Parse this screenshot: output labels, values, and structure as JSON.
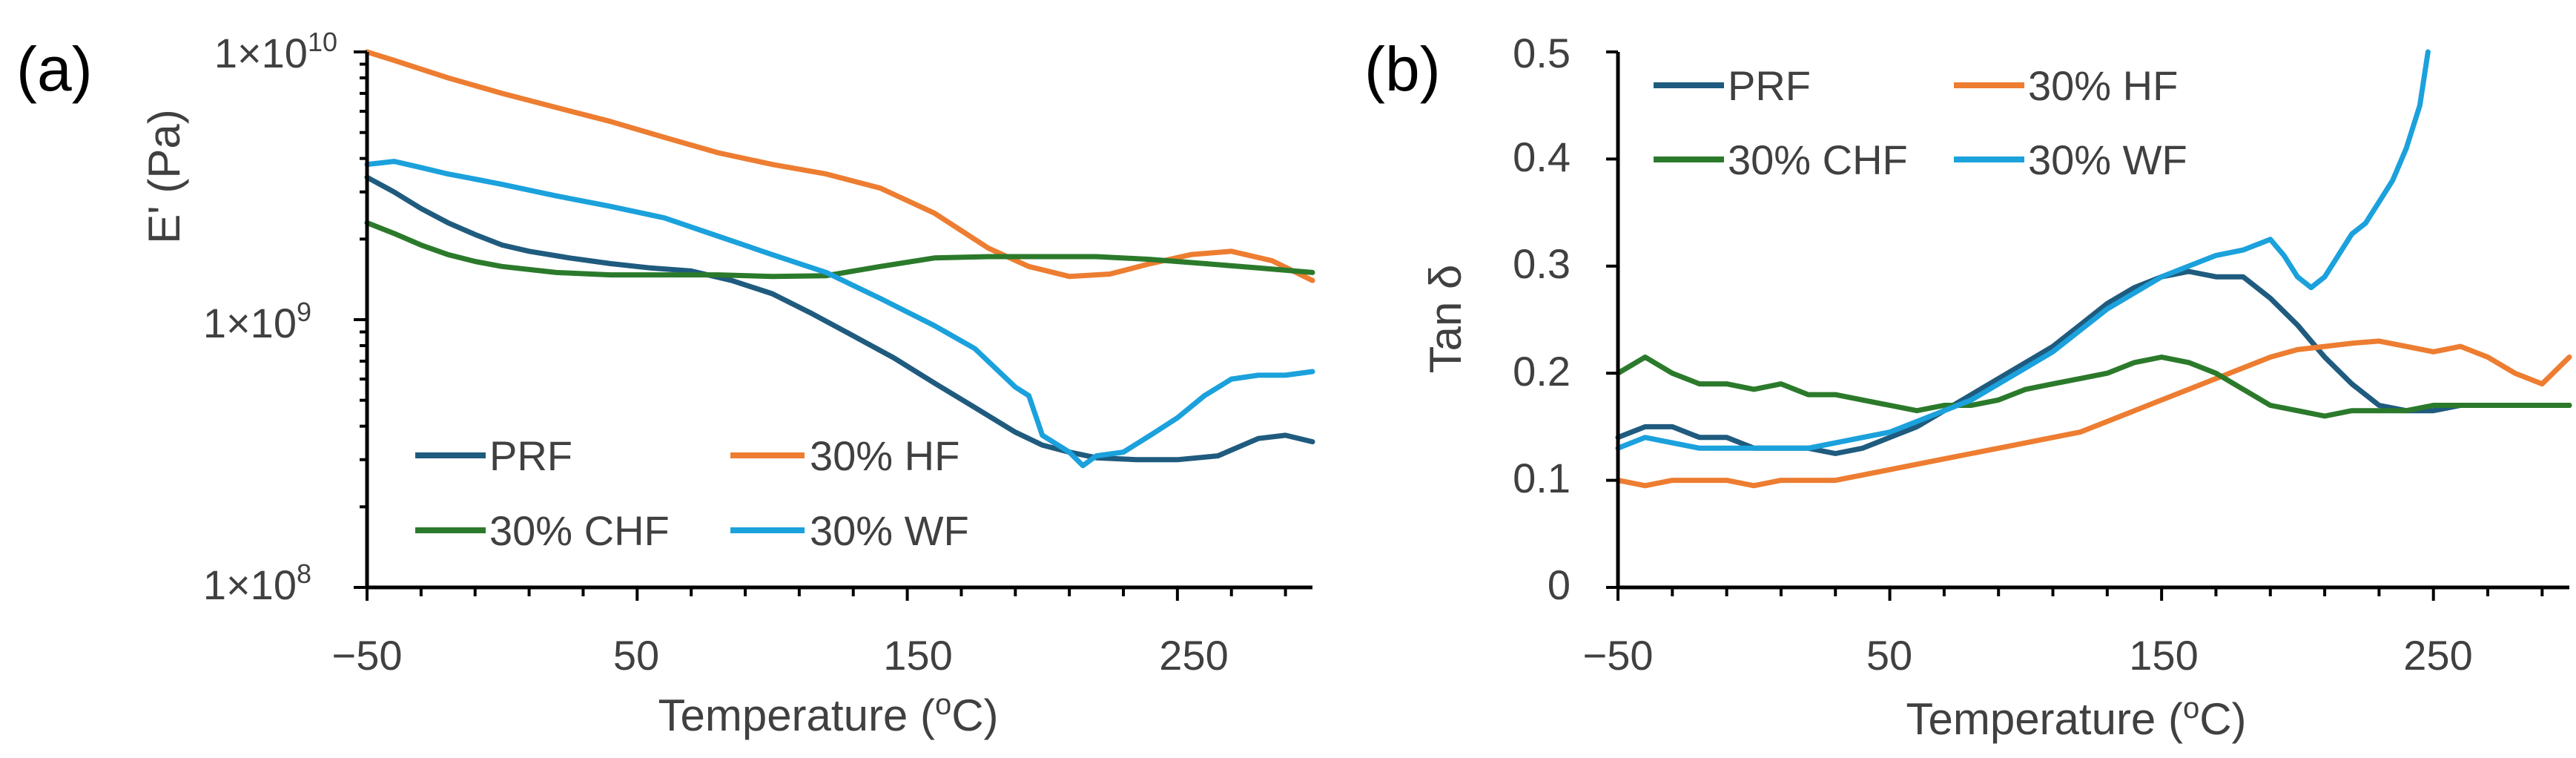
{
  "chart_data": [
    {
      "panel": "(a)",
      "type": "line",
      "xlabel": "Temperature (oC)",
      "xlabel_main": "Temperature (",
      "xlabel_sup": "o",
      "xlabel_end": "C)",
      "ylabel": "E' (Pa)",
      "yscale": "log",
      "xlim": [
        -50,
        300
      ],
      "ylim": [
        100000000,
        10000000000
      ],
      "x_ticks": [
        -50,
        50,
        150,
        250
      ],
      "x_tick_labels": [
        "−50",
        "50",
        "150",
        "250"
      ],
      "y_ticks": [
        100000000,
        1000000000,
        10000000000
      ],
      "y_tick_labels": [
        {
          "base": "1×10",
          "exp": "8"
        },
        {
          "base": "1×10",
          "exp": "9"
        },
        {
          "base": "1×10",
          "exp": "10"
        }
      ],
      "legend": "bottom-left, 2 columns",
      "series": [
        {
          "name": "PRF",
          "color": "#1f5b7e",
          "x": [
            -50,
            -40,
            -30,
            -20,
            -10,
            0,
            10,
            25,
            40,
            55,
            70,
            85,
            100,
            115,
            130,
            145,
            160,
            175,
            190,
            200,
            210,
            220,
            235,
            250,
            265,
            280,
            290,
            300
          ],
          "y": [
            3400000000,
            3000000000,
            2600000000,
            2300000000,
            2080000000,
            1900000000,
            1800000000,
            1700000000,
            1620000000,
            1560000000,
            1520000000,
            1400000000,
            1250000000,
            1050000000,
            870000000,
            720000000,
            580000000,
            470000000,
            380000000,
            340000000,
            320000000,
            305000000,
            300000000,
            300000000,
            310000000,
            360000000,
            370000000,
            350000000
          ]
        },
        {
          "name": "30% HF",
          "color": "#ed7d31",
          "x": [
            -50,
            -40,
            -20,
            0,
            20,
            40,
            60,
            80,
            100,
            120,
            140,
            160,
            180,
            195,
            210,
            225,
            240,
            255,
            270,
            285,
            300
          ],
          "y": [
            10000000000,
            9300000000,
            8000000000,
            7000000000,
            6200000000,
            5500000000,
            4800000000,
            4200000000,
            3800000000,
            3500000000,
            3100000000,
            2500000000,
            1850000000,
            1580000000,
            1450000000,
            1480000000,
            1620000000,
            1750000000,
            1800000000,
            1660000000,
            1400000000
          ]
        },
        {
          "name": "30% CHF",
          "color": "#2b7a2b",
          "x": [
            -50,
            -40,
            -30,
            -20,
            -10,
            0,
            20,
            40,
            60,
            80,
            100,
            120,
            140,
            160,
            180,
            200,
            220,
            240,
            260,
            280,
            300
          ],
          "y": [
            2300000000,
            2100000000,
            1900000000,
            1750000000,
            1650000000,
            1580000000,
            1500000000,
            1470000000,
            1470000000,
            1470000000,
            1450000000,
            1460000000,
            1580000000,
            1700000000,
            1720000000,
            1720000000,
            1720000000,
            1680000000,
            1620000000,
            1560000000,
            1500000000
          ]
        },
        {
          "name": "30% WF",
          "color": "#1ba1dc",
          "x": [
            -50,
            -40,
            -30,
            -20,
            -10,
            0,
            20,
            40,
            60,
            80,
            100,
            120,
            140,
            160,
            175,
            190,
            195,
            200,
            210,
            215,
            220,
            230,
            240,
            250,
            260,
            270,
            280,
            290,
            300
          ],
          "y": [
            3800000000,
            3900000000,
            3700000000,
            3500000000,
            3350000000,
            3200000000,
            2900000000,
            2650000000,
            2400000000,
            2050000000,
            1750000000,
            1500000000,
            1200000000,
            950000000,
            780000000,
            560000000,
            520000000,
            370000000,
            320000000,
            285000000,
            310000000,
            320000000,
            370000000,
            430000000,
            520000000,
            600000000,
            620000000,
            620000000,
            640000000
          ]
        }
      ]
    },
    {
      "panel": "(b)",
      "type": "line",
      "xlabel": "Temperature (oC)",
      "xlabel_main": "Temperature (",
      "xlabel_sup": "o",
      "xlabel_end": "C)",
      "ylabel": "Tan δ",
      "xlim": [
        -50,
        300
      ],
      "ylim": [
        0,
        0.5
      ],
      "x_ticks": [
        -50,
        50,
        150,
        250
      ],
      "x_tick_labels": [
        "−50",
        "50",
        "150",
        "250"
      ],
      "y_ticks": [
        0,
        0.1,
        0.2,
        0.3,
        0.4,
        0.5
      ],
      "y_tick_labels": [
        "0",
        "0.1",
        "0.2",
        "0.3",
        "0.4",
        "0.5"
      ],
      "legend": "top-left, 2 columns",
      "series": [
        {
          "name": "PRF",
          "color": "#1f5b7e",
          "x": [
            -50,
            -40,
            -30,
            -20,
            -10,
            0,
            10,
            20,
            30,
            40,
            50,
            60,
            70,
            80,
            90,
            100,
            110,
            120,
            130,
            140,
            150,
            160,
            170,
            180,
            190,
            200,
            210,
            220,
            230,
            240,
            250,
            260,
            270,
            280,
            290,
            300
          ],
          "y": [
            0.14,
            0.15,
            0.15,
            0.14,
            0.14,
            0.13,
            0.13,
            0.13,
            0.125,
            0.13,
            0.14,
            0.15,
            0.165,
            0.18,
            0.195,
            0.21,
            0.225,
            0.245,
            0.265,
            0.28,
            0.29,
            0.295,
            0.29,
            0.29,
            0.27,
            0.245,
            0.215,
            0.19,
            0.17,
            0.165,
            0.165,
            0.17,
            0.17,
            0.17,
            0.17,
            0.17
          ]
        },
        {
          "name": "30% HF",
          "color": "#ed7d31",
          "x": [
            -50,
            -40,
            -30,
            -20,
            -10,
            0,
            10,
            20,
            30,
            40,
            50,
            60,
            70,
            80,
            90,
            100,
            110,
            120,
            130,
            140,
            150,
            160,
            170,
            180,
            190,
            200,
            210,
            220,
            230,
            240,
            250,
            260,
            270,
            280,
            290,
            300
          ],
          "y": [
            0.1,
            0.095,
            0.1,
            0.1,
            0.1,
            0.095,
            0.1,
            0.1,
            0.1,
            0.105,
            0.11,
            0.115,
            0.12,
            0.125,
            0.13,
            0.135,
            0.14,
            0.145,
            0.155,
            0.165,
            0.175,
            0.185,
            0.195,
            0.205,
            0.215,
            0.222,
            0.225,
            0.228,
            0.23,
            0.225,
            0.22,
            0.225,
            0.215,
            0.2,
            0.19,
            0.215
          ]
        },
        {
          "name": "30% CHF",
          "color": "#2b7a2b",
          "x": [
            -50,
            -40,
            -30,
            -20,
            -10,
            0,
            10,
            20,
            30,
            40,
            50,
            60,
            70,
            80,
            90,
            100,
            110,
            120,
            130,
            140,
            150,
            160,
            170,
            180,
            190,
            200,
            210,
            220,
            230,
            240,
            250,
            260,
            270,
            280,
            290,
            300
          ],
          "y": [
            0.2,
            0.215,
            0.2,
            0.19,
            0.19,
            0.185,
            0.19,
            0.18,
            0.18,
            0.175,
            0.17,
            0.165,
            0.17,
            0.17,
            0.175,
            0.185,
            0.19,
            0.195,
            0.2,
            0.21,
            0.215,
            0.21,
            0.2,
            0.185,
            0.17,
            0.165,
            0.16,
            0.165,
            0.165,
            0.165,
            0.17,
            0.17,
            0.17,
            0.17,
            0.17,
            0.17
          ]
        },
        {
          "name": "30% WF",
          "color": "#1ba1dc",
          "x": [
            -50,
            -40,
            -30,
            -20,
            -10,
            0,
            10,
            20,
            30,
            40,
            50,
            60,
            70,
            80,
            90,
            100,
            110,
            120,
            130,
            140,
            150,
            160,
            170,
            180,
            185,
            190,
            195,
            200,
            205,
            210,
            215,
            220,
            225,
            230,
            235,
            240,
            245,
            248
          ],
          "y": [
            0.13,
            0.14,
            0.135,
            0.13,
            0.13,
            0.13,
            0.13,
            0.13,
            0.135,
            0.14,
            0.145,
            0.155,
            0.165,
            0.175,
            0.19,
            0.205,
            0.22,
            0.24,
            0.26,
            0.275,
            0.29,
            0.3,
            0.31,
            0.315,
            0.32,
            0.325,
            0.31,
            0.29,
            0.28,
            0.29,
            0.31,
            0.33,
            0.34,
            0.36,
            0.38,
            0.41,
            0.45,
            0.5
          ]
        }
      ]
    }
  ]
}
